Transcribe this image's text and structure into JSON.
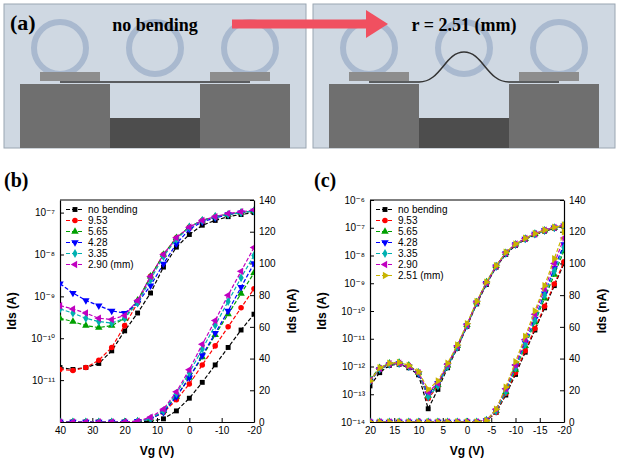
{
  "panel_a": {
    "label": "(a)",
    "before": "no bending",
    "after": "r = 2.51 (mm)"
  },
  "chart_data": [
    {
      "type": "line",
      "label": "(b)",
      "x_label": "Vg (V)",
      "y_label": "Ids (A)",
      "y2_label": "Ids (nA)",
      "log": "y",
      "legend": "upper left",
      "xlim": [
        40,
        -20
      ],
      "xticks": [
        40,
        30,
        20,
        10,
        0,
        -10,
        -20
      ],
      "ylim": [
        1e-12,
        2e-07
      ],
      "yticks": [
        {
          "value": 1e-11,
          "label": "10⁻¹¹"
        },
        {
          "value": 1e-10,
          "label": "10⁻¹⁰"
        },
        {
          "value": 1e-09,
          "label": "10⁻⁹"
        },
        {
          "value": 1e-08,
          "label": "10⁻⁸"
        },
        {
          "value": 1e-07,
          "label": "10⁻⁷"
        }
      ],
      "y2lim": [
        0,
        140
      ],
      "y2ticks": [
        0,
        20,
        40,
        60,
        80,
        100,
        120,
        140
      ],
      "x": [
        40,
        36,
        32,
        28,
        24,
        20,
        16,
        12,
        8,
        4,
        0,
        -4,
        -8,
        -12,
        -16,
        -20
      ],
      "series": [
        {
          "name": "no bending",
          "color": "#000000",
          "marker": "square",
          "line_style": "dash",
          "values": [
            2e-11,
            1.8e-11,
            2e-11,
            2.5e-11,
            5e-11,
            1.5e-10,
            4e-10,
            1.2e-09,
            5e-09,
            1.5e-08,
            3e-08,
            5e-08,
            6.5e-08,
            8e-08,
            9e-08,
            1e-07
          ]
        },
        {
          "name": "9.53",
          "color": "#ff0000",
          "marker": "circle",
          "line_style": "dash",
          "values": [
            1.8e-11,
            1.7e-11,
            2e-11,
            3e-11,
            6e-11,
            2e-10,
            7e-10,
            3e-09,
            1e-08,
            2.5e-08,
            4.5e-08,
            6.5e-08,
            8e-08,
            9e-08,
            1e-07,
            1.1e-07
          ]
        },
        {
          "name": "5.65",
          "color": "#00a000",
          "marker": "triangle-up",
          "line_style": "dash",
          "values": [
            3e-10,
            2.5e-10,
            2e-10,
            1.8e-10,
            2e-10,
            3e-10,
            8e-10,
            3e-09,
            1e-08,
            2.5e-08,
            4.5e-08,
            6.5e-08,
            8e-08,
            9e-08,
            1e-07,
            1.1e-07
          ]
        },
        {
          "name": "4.28",
          "color": "#0000ff",
          "marker": "triangle-down",
          "line_style": "dash",
          "values": [
            2e-09,
            1.2e-09,
            8e-10,
            6e-10,
            4.5e-10,
            4e-10,
            7e-10,
            1.8e-09,
            6e-09,
            1.8e-08,
            4e-08,
            6e-08,
            7.5e-08,
            9e-08,
            1e-07,
            1.1e-07
          ]
        },
        {
          "name": "3.35",
          "color": "#00b0b0",
          "marker": "diamond",
          "line_style": "dash",
          "values": [
            5e-10,
            4e-10,
            3e-10,
            2.5e-10,
            2.3e-10,
            3e-10,
            7e-10,
            2.5e-09,
            9e-09,
            2.3e-08,
            4.5e-08,
            6.5e-08,
            8e-08,
            9e-08,
            1e-07,
            1.1e-07
          ]
        },
        {
          "name": "2.90 (mm)",
          "color": "#c000c0",
          "marker": "triangle-left",
          "line_style": "dash",
          "values": [
            6e-10,
            5e-10,
            4e-10,
            3e-10,
            2.8e-10,
            3.5e-10,
            8e-10,
            3e-09,
            1e-08,
            2.5e-08,
            4.5e-08,
            6.5e-08,
            8e-08,
            9.5e-08,
            1.05e-07,
            1.15e-07
          ]
        },
        {
          "axis": "y2",
          "color": "#000000",
          "marker": "square",
          "line_style": "dash",
          "values": [
            0,
            0,
            0,
            0,
            0,
            0,
            0,
            0.5,
            2,
            7,
            15,
            25,
            36,
            47,
            58,
            68
          ]
        },
        {
          "axis": "y2",
          "color": "#ff0000",
          "marker": "circle",
          "line_style": "dash",
          "values": [
            0,
            0,
            0,
            0,
            0,
            0,
            0.5,
            2,
            6,
            14,
            24,
            36,
            48,
            60,
            72,
            84
          ]
        },
        {
          "axis": "y2",
          "color": "#00a000",
          "marker": "triangle-up",
          "line_style": "dash",
          "values": [
            0,
            0,
            0,
            0,
            0,
            0,
            0.5,
            2,
            7,
            16,
            28,
            41,
            55,
            68,
            81,
            94
          ]
        },
        {
          "axis": "y2",
          "color": "#0000ff",
          "marker": "triangle-down",
          "line_style": "dash",
          "values": [
            0,
            0,
            0,
            0,
            0,
            0,
            0.5,
            2,
            6,
            16,
            28,
            42,
            56,
            70,
            85,
            100
          ]
        },
        {
          "axis": "y2",
          "color": "#00b0b0",
          "marker": "diamond",
          "line_style": "dash",
          "values": [
            0,
            0,
            0,
            0,
            0,
            0,
            0.5,
            2,
            7,
            18,
            31,
            46,
            61,
            76,
            91,
            105
          ]
        },
        {
          "axis": "y2",
          "color": "#c000c0",
          "marker": "triangle-left",
          "line_style": "dash",
          "values": [
            0,
            0,
            0,
            0,
            0,
            0,
            0.5,
            3,
            8,
            19,
            33,
            49,
            64,
            80,
            95,
            110
          ]
        }
      ]
    },
    {
      "type": "line",
      "label": "(c)",
      "x_label": "Vg (V)",
      "y_label": "Ids (A)",
      "y2_label": "Ids (nA)",
      "log": "y",
      "legend": "upper left",
      "xlim": [
        20,
        -20
      ],
      "xticks": [
        20,
        15,
        10,
        5,
        0,
        -5,
        -10,
        -15,
        -20
      ],
      "ylim": [
        1e-14,
        1e-06
      ],
      "yticks": [
        {
          "value": 1e-14,
          "label": "10⁻¹⁴"
        },
        {
          "value": 1e-13,
          "label": "10⁻¹³"
        },
        {
          "value": 1e-12,
          "label": "10⁻¹²"
        },
        {
          "value": 1e-11,
          "label": "10⁻¹¹"
        },
        {
          "value": 1e-10,
          "label": "10⁻¹⁰"
        },
        {
          "value": 1e-09,
          "label": "10⁻⁹"
        },
        {
          "value": 1e-08,
          "label": "10⁻⁸"
        },
        {
          "value": 1e-07,
          "label": "10⁻⁷"
        },
        {
          "value": 1e-06,
          "label": "10⁻⁶"
        }
      ],
      "y2lim": [
        0,
        140
      ],
      "y2ticks": [
        0,
        20,
        40,
        60,
        80,
        100,
        120,
        140
      ],
      "x": [
        20,
        18,
        16,
        14,
        12,
        10,
        8,
        6,
        4,
        2,
        0,
        -2,
        -4,
        -6,
        -8,
        -10,
        -12,
        -14,
        -16,
        -18,
        -20
      ],
      "series": [
        {
          "name": "no bending",
          "color": "#000000",
          "marker": "square",
          "line_style": "dash",
          "values": [
            2e-13,
            6e-13,
            1.1e-12,
            1.2e-12,
            9e-13,
            5e-13,
            3e-14,
            1.5e-13,
            9e-13,
            4.5e-12,
            2.8e-11,
            1.8e-10,
            9e-10,
            3.8e-09,
            1.1e-08,
            2.3e-08,
            3.8e-08,
            5.6e-08,
            7.5e-08,
            9.5e-08,
            1.1e-07
          ]
        },
        {
          "name": "9.53",
          "color": "#ff0000",
          "marker": "circle",
          "line_style": "dash",
          "values": [
            3e-13,
            8e-13,
            1.2e-12,
            1.3e-12,
            1e-12,
            6e-13,
            7e-14,
            2e-13,
            1e-12,
            5e-12,
            3e-11,
            2e-10,
            1e-09,
            4e-09,
            1.2e-08,
            2.4e-08,
            3.9e-08,
            5.8e-08,
            7.8e-08,
            9.8e-08,
            1.15e-07
          ]
        },
        {
          "name": "5.65",
          "color": "#00a000",
          "marker": "triangle-up",
          "line_style": "dash",
          "values": [
            3.5e-13,
            9e-13,
            1.3e-12,
            1.4e-12,
            1.1e-12,
            6e-13,
            9e-14,
            2.2e-13,
            1.1e-12,
            5.5e-12,
            3.2e-11,
            2.1e-10,
            1.1e-09,
            4.2e-09,
            1.25e-08,
            2.5e-08,
            4e-08,
            6e-08,
            8e-08,
            1e-07,
            1.2e-07
          ]
        },
        {
          "name": "4.28",
          "color": "#0000ff",
          "marker": "triangle-down",
          "line_style": "dash",
          "values": [
            3e-13,
            8e-13,
            1.2e-12,
            1.3e-12,
            1e-12,
            5.5e-13,
            1e-13,
            2.5e-13,
            1.1e-12,
            5e-12,
            3e-11,
            2e-10,
            1e-09,
            4e-09,
            1.2e-08,
            2.5e-08,
            4e-08,
            6e-08,
            8e-08,
            1e-07,
            1.2e-07
          ]
        },
        {
          "name": "3.35",
          "color": "#00b0b0",
          "marker": "diamond",
          "line_style": "dash",
          "values": [
            3e-13,
            8e-13,
            1.2e-12,
            1.3e-12,
            1e-12,
            6e-13,
            8e-14,
            2e-13,
            1e-12,
            5e-12,
            3e-11,
            2e-10,
            1e-09,
            4e-09,
            1.2e-08,
            2.5e-08,
            4e-08,
            6e-08,
            8e-08,
            1e-07,
            1.2e-07
          ]
        },
        {
          "name": "2.90",
          "color": "#c000c0",
          "marker": "triangle-left",
          "line_style": "dash",
          "values": [
            3.2e-13,
            8.5e-13,
            1.25e-12,
            1.3e-12,
            1e-12,
            6e-13,
            1.2e-13,
            2.5e-13,
            1.2e-12,
            5.5e-12,
            3.2e-11,
            2.1e-10,
            1.05e-09,
            4.2e-09,
            1.25e-08,
            2.6e-08,
            4.1e-08,
            6.1e-08,
            8.2e-08,
            1.02e-07,
            1.22e-07
          ]
        },
        {
          "name": "2.51 (mm)",
          "color": "#c8b400",
          "marker": "triangle-right",
          "line_style": "dash",
          "values": [
            3e-13,
            9e-13,
            1.3e-12,
            1.4e-12,
            1.1e-12,
            6.5e-13,
            1.5e-13,
            3e-13,
            1.3e-12,
            6e-12,
            3.5e-11,
            2.2e-10,
            1.1e-09,
            4.3e-09,
            1.3e-08,
            2.6e-08,
            4.2e-08,
            6.2e-08,
            8.3e-08,
            1.04e-07,
            1.25e-07
          ]
        },
        {
          "axis": "y2",
          "color": "#000000",
          "marker": "square",
          "line_style": "dash",
          "values": [
            0,
            0,
            0,
            0,
            0,
            0,
            0,
            0,
            0,
            0,
            0,
            0,
            1,
            6,
            17,
            30,
            44,
            58,
            72,
            86,
            100
          ]
        },
        {
          "axis": "y2",
          "color": "#ff0000",
          "marker": "circle",
          "line_style": "dash",
          "values": [
            0,
            0,
            0,
            0,
            0,
            0,
            0,
            0,
            0,
            0,
            0,
            0,
            1,
            6,
            18,
            31,
            45,
            59,
            73,
            87,
            101
          ]
        },
        {
          "axis": "y2",
          "color": "#00a000",
          "marker": "triangle-up",
          "line_style": "dash",
          "values": [
            0,
            0,
            0,
            0,
            0,
            0,
            0,
            0,
            0,
            0,
            0,
            0,
            1,
            7,
            19,
            33,
            48,
            63,
            78,
            93,
            108
          ]
        },
        {
          "axis": "y2",
          "color": "#0000ff",
          "marker": "triangle-down",
          "line_style": "dash",
          "values": [
            0,
            0,
            0,
            0,
            0,
            0,
            0,
            0,
            0,
            0,
            0,
            0,
            1,
            7,
            20,
            35,
            50,
            65,
            81,
            97,
            112
          ]
        },
        {
          "axis": "y2",
          "color": "#00b0b0",
          "marker": "diamond",
          "line_style": "dash",
          "values": [
            0,
            0,
            0,
            0,
            0,
            0,
            0,
            0,
            0,
            0,
            0,
            0,
            1,
            7,
            19,
            34,
            49,
            64,
            80,
            95,
            110
          ]
        },
        {
          "axis": "y2",
          "color": "#c000c0",
          "marker": "triangle-left",
          "line_style": "dash",
          "values": [
            0,
            0,
            0,
            0,
            0,
            0,
            0,
            0,
            0,
            0,
            0,
            0,
            1,
            8,
            21,
            36,
            52,
            68,
            84,
            100,
            116
          ]
        },
        {
          "axis": "y2",
          "color": "#c8b400",
          "marker": "triangle-right",
          "line_style": "dash",
          "values": [
            0,
            0,
            0,
            0,
            0,
            0,
            0,
            0,
            0,
            0,
            0,
            0,
            1,
            8,
            22,
            38,
            54,
            70,
            86,
            103,
            120
          ]
        }
      ]
    }
  ]
}
